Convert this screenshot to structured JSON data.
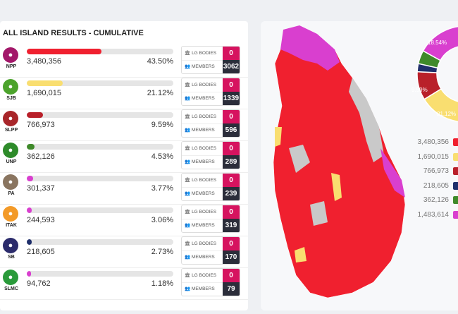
{
  "panel": {
    "title": "ALL ISLAND RESULTS - CUMULATIVE",
    "lg_label": "LG BODIES",
    "members_label": "MEMBERS"
  },
  "parties": [
    {
      "abbr": "NPP",
      "votes": "3,480,356",
      "pct": "43.50%",
      "share": 43.5,
      "lg": "0",
      "members": "3062",
      "color": "#f0202f",
      "logo": "#a3186a"
    },
    {
      "abbr": "SJB",
      "votes": "1,690,015",
      "pct": "21.12%",
      "share": 21.12,
      "lg": "0",
      "members": "1339",
      "color": "#f9de70",
      "logo": "#4ca32c"
    },
    {
      "abbr": "SLPP",
      "votes": "766,973",
      "pct": "9.59%",
      "share": 9.59,
      "lg": "0",
      "members": "596",
      "color": "#b9202a",
      "logo": "#a8262a"
    },
    {
      "abbr": "UNP",
      "votes": "362,126",
      "pct": "4.53%",
      "share": 4.53,
      "lg": "0",
      "members": "289",
      "color": "#3f8a2a",
      "logo": "#2e8b2a"
    },
    {
      "abbr": "PA",
      "votes": "301,337",
      "pct": "3.77%",
      "share": 3.77,
      "lg": "0",
      "members": "239",
      "color": "#d93fcf",
      "logo": "#8a7560"
    },
    {
      "abbr": "ITAK",
      "votes": "244,593",
      "pct": "3.06%",
      "share": 3.06,
      "lg": "0",
      "members": "319",
      "color": "#d93fcf",
      "logo": "#f39a28"
    },
    {
      "abbr": "SB",
      "votes": "218,605",
      "pct": "2.73%",
      "share": 2.73,
      "lg": "0",
      "members": "170",
      "color": "#1f2f6b",
      "logo": "#2b2b6b"
    },
    {
      "abbr": "SLMC",
      "votes": "94,762",
      "pct": "1.18%",
      "share": 1.18,
      "lg": "0",
      "members": "79",
      "color": "#d93fcf",
      "logo": "#2a9a3a"
    }
  ],
  "donut": {
    "labels": [
      "18.54%",
      "9.59%",
      "21.12%"
    ],
    "segments": [
      {
        "value": 43.5,
        "color": "#f0202f"
      },
      {
        "value": 21.12,
        "color": "#f9de70"
      },
      {
        "value": 9.59,
        "color": "#b9202a"
      },
      {
        "value": 2.73,
        "color": "#1f2f6b"
      },
      {
        "value": 4.53,
        "color": "#3f8a2a"
      },
      {
        "value": 18.54,
        "color": "#d93fcf"
      }
    ]
  },
  "legend": [
    {
      "value": "3,480,356",
      "color": "#f0202f"
    },
    {
      "value": "1,690,015",
      "color": "#f9de70"
    },
    {
      "value": "766,973",
      "color": "#b9202a"
    },
    {
      "value": "218,605",
      "color": "#1f2f6b"
    },
    {
      "value": "362,126",
      "color": "#3f8a2a"
    },
    {
      "value": "1,483,614",
      "color": "#d93fcf"
    }
  ]
}
